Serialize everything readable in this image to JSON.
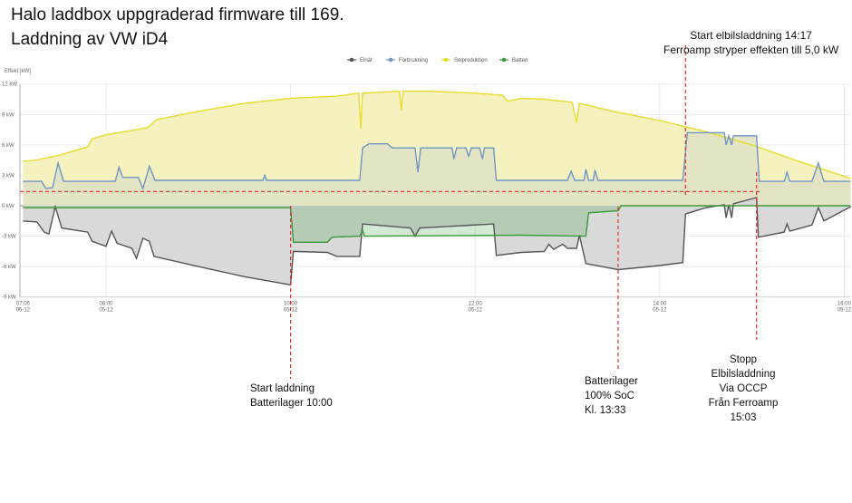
{
  "titles": [
    "Halo laddbox uppgraderad firmware till 169.",
    "Laddning av VW iD4"
  ],
  "annotations": {
    "top_right": [
      "Start elbilsladdning 14:17",
      "Ferroamp stryper effekten till 5,0 kW"
    ],
    "start_charge": [
      "Start laddning",
      "Batterilager 10:00"
    ],
    "battery_full": [
      "Batterilager",
      "100% SoC",
      "Kl. 13:33"
    ],
    "stop": [
      "Stopp",
      "Elbilsladdning",
      "Via OCCP",
      "Från Ferroamp",
      "15:03"
    ],
    "marker_times_h": [
      10.0,
      13.55,
      14.28,
      15.05
    ],
    "threshold_kw": 1.4,
    "line_color": "#e53030"
  },
  "chart_data": {
    "type": "area",
    "title": "",
    "ylabel": "Effekt [kW]",
    "xlabel": "",
    "ylim": [
      -9,
      12
    ],
    "xlim_h": [
      7.1,
      16.07
    ],
    "grid": true,
    "legend_position": "top-center",
    "yticks": [
      {
        "v": 12,
        "label": "12 kW"
      },
      {
        "v": 9,
        "label": "9 kW"
      },
      {
        "v": 6,
        "label": "6 kW"
      },
      {
        "v": 3,
        "label": "3 kW"
      },
      {
        "v": 0,
        "label": "0 kW"
      },
      {
        "v": -3,
        "label": "-3 kW"
      },
      {
        "v": -6,
        "label": "-6 kW"
      },
      {
        "v": -9,
        "label": "-9 kW"
      }
    ],
    "xticks": [
      {
        "t": 7.1,
        "label": "07:06",
        "date": "05-12"
      },
      {
        "t": 8,
        "label": "08:00",
        "date": "05-12"
      },
      {
        "t": 10,
        "label": "10:00",
        "date": "05-12"
      },
      {
        "t": 12,
        "label": "12:00",
        "date": "05-12"
      },
      {
        "t": 14,
        "label": "14:00",
        "date": "05-12"
      },
      {
        "t": 16,
        "label": "16:00",
        "date": "05-12"
      }
    ],
    "series": [
      {
        "name": "Solproduktion",
        "color": "#e6dc2e",
        "fill": "#f6f2bf",
        "points": [
          [
            7.1,
            4.4
          ],
          [
            7.25,
            4.5
          ],
          [
            7.5,
            5.0
          ],
          [
            7.8,
            5.8
          ],
          [
            7.85,
            6.6
          ],
          [
            8.0,
            7.0
          ],
          [
            8.2,
            7.3
          ],
          [
            8.45,
            7.7
          ],
          [
            8.55,
            8.5
          ],
          [
            9.0,
            9.3
          ],
          [
            9.5,
            10.1
          ],
          [
            10.0,
            10.6
          ],
          [
            10.5,
            10.8
          ],
          [
            10.74,
            11.1
          ],
          [
            10.76,
            7.6
          ],
          [
            10.78,
            11.1
          ],
          [
            11.0,
            11.2
          ],
          [
            11.18,
            11.3
          ],
          [
            11.2,
            9.4
          ],
          [
            11.22,
            11.3
          ],
          [
            11.5,
            11.3
          ],
          [
            12.0,
            11.1
          ],
          [
            12.3,
            10.9
          ],
          [
            12.35,
            10.3
          ],
          [
            12.5,
            10.6
          ],
          [
            12.75,
            10.5
          ],
          [
            13.05,
            10.2
          ],
          [
            13.1,
            8.2
          ],
          [
            13.13,
            10.1
          ],
          [
            13.5,
            9.3
          ],
          [
            14.0,
            8.4
          ],
          [
            14.5,
            7.3
          ],
          [
            15.0,
            6.0
          ],
          [
            15.5,
            4.4
          ],
          [
            16.0,
            2.9
          ],
          [
            16.07,
            2.7
          ]
        ]
      },
      {
        "name": "Förbrukning",
        "color": "#7096c8",
        "fill": "#dfe2c3",
        "points": [
          [
            7.1,
            2.4
          ],
          [
            7.3,
            2.4
          ],
          [
            7.35,
            1.7
          ],
          [
            7.42,
            1.8
          ],
          [
            7.48,
            4.2
          ],
          [
            7.54,
            2.4
          ],
          [
            8.1,
            2.4
          ],
          [
            8.14,
            3.8
          ],
          [
            8.18,
            2.8
          ],
          [
            8.35,
            2.8
          ],
          [
            8.4,
            1.7
          ],
          [
            8.47,
            3.9
          ],
          [
            8.53,
            2.5
          ],
          [
            9.7,
            2.5
          ],
          [
            9.72,
            3.0
          ],
          [
            9.74,
            2.5
          ],
          [
            10.75,
            2.5
          ],
          [
            10.78,
            5.7
          ],
          [
            10.85,
            6.1
          ],
          [
            11.05,
            6.1
          ],
          [
            11.1,
            5.7
          ],
          [
            11.35,
            5.7
          ],
          [
            11.38,
            3.3
          ],
          [
            11.41,
            5.7
          ],
          [
            11.75,
            5.7
          ],
          [
            11.77,
            4.6
          ],
          [
            11.8,
            5.7
          ],
          [
            11.9,
            5.7
          ],
          [
            11.93,
            4.9
          ],
          [
            11.96,
            5.7
          ],
          [
            12.05,
            5.7
          ],
          [
            12.08,
            4.6
          ],
          [
            12.1,
            5.7
          ],
          [
            12.2,
            5.7
          ],
          [
            12.23,
            2.5
          ],
          [
            13.0,
            2.5
          ],
          [
            13.04,
            3.4
          ],
          [
            13.08,
            2.5
          ],
          [
            13.18,
            2.5
          ],
          [
            13.2,
            3.6
          ],
          [
            13.23,
            2.5
          ],
          [
            13.28,
            2.5
          ],
          [
            13.3,
            3.5
          ],
          [
            13.33,
            2.5
          ],
          [
            14.25,
            2.5
          ],
          [
            14.3,
            7.2
          ],
          [
            14.7,
            7.2
          ],
          [
            14.72,
            6.0
          ],
          [
            14.75,
            6.9
          ],
          [
            14.78,
            6.0
          ],
          [
            14.8,
            6.9
          ],
          [
            15.05,
            6.9
          ],
          [
            15.08,
            2.4
          ],
          [
            15.35,
            2.4
          ],
          [
            15.38,
            3.3
          ],
          [
            15.41,
            2.4
          ],
          [
            15.65,
            2.4
          ],
          [
            15.72,
            4.2
          ],
          [
            15.78,
            2.4
          ],
          [
            16.07,
            2.4
          ]
        ]
      },
      {
        "name": "Elnät",
        "color": "#555555",
        "fill": "#d9d9d9",
        "points": [
          [
            7.1,
            -1.5
          ],
          [
            7.25,
            -1.6
          ],
          [
            7.33,
            -2.6
          ],
          [
            7.38,
            -2.8
          ],
          [
            7.45,
            -0.1
          ],
          [
            7.52,
            -2.2
          ],
          [
            7.8,
            -2.6
          ],
          [
            7.85,
            -3.5
          ],
          [
            8.0,
            -4.0
          ],
          [
            8.06,
            -2.5
          ],
          [
            8.12,
            -3.7
          ],
          [
            8.28,
            -4.2
          ],
          [
            8.33,
            -5.2
          ],
          [
            8.4,
            -3.2
          ],
          [
            8.47,
            -3.5
          ],
          [
            8.52,
            -5.0
          ],
          [
            9.0,
            -6.0
          ],
          [
            9.5,
            -7.0
          ],
          [
            10.0,
            -7.8
          ],
          [
            10.03,
            -4.5
          ],
          [
            10.4,
            -4.6
          ],
          [
            10.5,
            -5.0
          ],
          [
            10.75,
            -5.0
          ],
          [
            10.78,
            -1.8
          ],
          [
            11.3,
            -2.2
          ],
          [
            11.35,
            -3.0
          ],
          [
            11.4,
            -2.2
          ],
          [
            12.2,
            -1.8
          ],
          [
            12.23,
            -4.9
          ],
          [
            12.5,
            -4.6
          ],
          [
            12.75,
            -4.5
          ],
          [
            12.8,
            -3.8
          ],
          [
            12.85,
            -4.3
          ],
          [
            12.95,
            -3.8
          ],
          [
            13.0,
            -4.2
          ],
          [
            13.1,
            -4.2
          ],
          [
            13.13,
            -2.9
          ],
          [
            13.2,
            -5.7
          ],
          [
            13.55,
            -6.3
          ],
          [
            14.0,
            -5.9
          ],
          [
            14.25,
            -5.6
          ],
          [
            14.28,
            -0.8
          ],
          [
            14.5,
            -0.2
          ],
          [
            14.7,
            0.1
          ],
          [
            14.72,
            -1.2
          ],
          [
            14.75,
            0.1
          ],
          [
            14.78,
            -1.2
          ],
          [
            14.8,
            0.2
          ],
          [
            15.05,
            0.8
          ],
          [
            15.07,
            -3.1
          ],
          [
            15.35,
            -2.6
          ],
          [
            15.38,
            -1.8
          ],
          [
            15.41,
            -2.5
          ],
          [
            15.65,
            -1.9
          ],
          [
            15.72,
            -0.2
          ],
          [
            15.78,
            -1.5
          ],
          [
            16.07,
            -0.1
          ]
        ]
      },
      {
        "name": "Batteri",
        "color": "#3c9a3c",
        "fill": "rgba(60,154,60,0.22)",
        "points": [
          [
            7.1,
            -0.2
          ],
          [
            10.0,
            -0.2
          ],
          [
            10.03,
            -3.6
          ],
          [
            10.4,
            -3.6
          ],
          [
            10.45,
            -3.1
          ],
          [
            10.75,
            -3.0
          ],
          [
            10.78,
            -2.4
          ],
          [
            10.8,
            -3.0
          ],
          [
            12.5,
            -2.9
          ],
          [
            13.2,
            -3.0
          ],
          [
            13.23,
            -0.7
          ],
          [
            13.55,
            -0.5
          ],
          [
            13.58,
            0
          ],
          [
            16.07,
            0
          ]
        ]
      }
    ]
  }
}
